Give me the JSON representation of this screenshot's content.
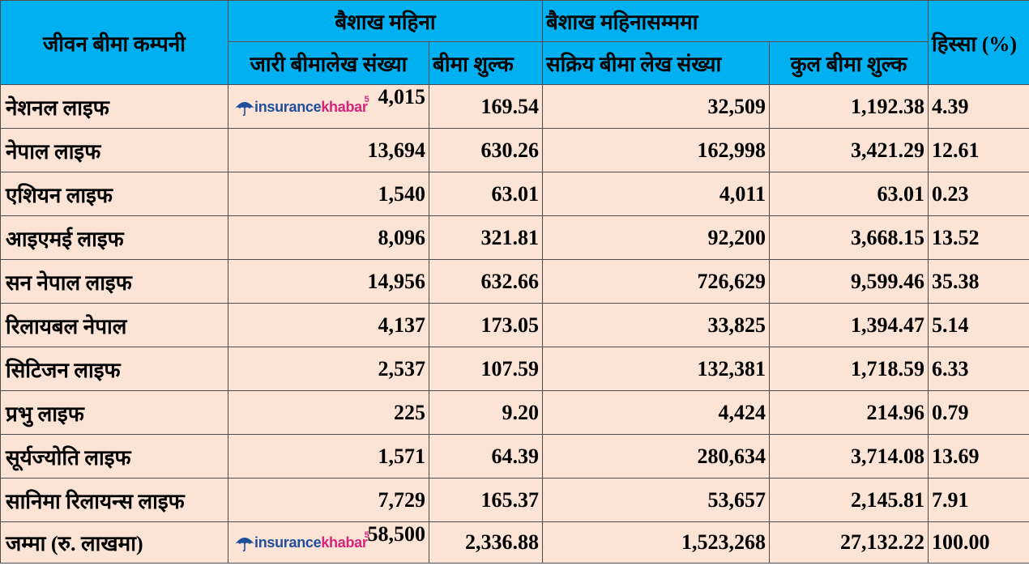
{
  "header": {
    "company_col": "जीवन बीमा कम्पनी",
    "group_month": "बैशाख महिना",
    "group_cumulative": "बैशाख महिनासम्ममा",
    "share_col": "हिस्सा (%)",
    "sub_policies_issued": "जारी बीमालेख संख्या",
    "sub_premium": "बीमा शुल्क",
    "sub_active_policies": "सक्रिय बीमा लेख संख्या",
    "sub_total_premium": "कुल बीमा शुल्क"
  },
  "watermark": {
    "word1": "insurance",
    "word2": "khabar",
    "sup": "5",
    "color_blue": "#1f4e9c",
    "color_pink": "#d6247a"
  },
  "colors": {
    "header_bg": "#00b0f0",
    "body_bg": "#fbe4d5",
    "border": "#4d4d4d"
  },
  "rows": [
    {
      "company": "नेशनल लाइफ",
      "issued": "4,015",
      "premium": "169.54",
      "active": "32,509",
      "total_premium": "1,192.38",
      "share": "4.39"
    },
    {
      "company": "नेपाल लाइफ",
      "issued": "13,694",
      "premium": "630.26",
      "active": "162,998",
      "total_premium": "3,421.29",
      "share": "12.61"
    },
    {
      "company": "एशियन लाइफ",
      "issued": "1,540",
      "premium": "63.01",
      "active": "4,011",
      "total_premium": "63.01",
      "share": "0.23"
    },
    {
      "company": "आइएमई लाइफ",
      "issued": "8,096",
      "premium": "321.81",
      "active": "92,200",
      "total_premium": "3,668.15",
      "share": "13.52"
    },
    {
      "company": "सन नेपाल लाइफ",
      "issued": "14,956",
      "premium": "632.66",
      "active": "726,629",
      "total_premium": "9,599.46",
      "share": "35.38"
    },
    {
      "company": "रिलायबल नेपाल",
      "issued": "4,137",
      "premium": "173.05",
      "active": "33,825",
      "total_premium": "1,394.47",
      "share": "5.14"
    },
    {
      "company": "सिटिजन लाइफ",
      "issued": "2,537",
      "premium": "107.59",
      "active": "132,381",
      "total_premium": "1,718.59",
      "share": "6.33"
    },
    {
      "company": "प्रभु लाइफ",
      "issued": "225",
      "premium": "9.20",
      "active": "4,424",
      "total_premium": "214.96",
      "share": "0.79"
    },
    {
      "company": "सूर्यज्योति लाइफ",
      "issued": "1,571",
      "premium": "64.39",
      "active": "280,634",
      "total_premium": "3,714.08",
      "share": "13.69"
    },
    {
      "company": "सानिमा रिलायन्स लाइफ",
      "issued": "7,729",
      "premium": "165.37",
      "active": "53,657",
      "total_premium": "2,145.81",
      "share": "7.91"
    }
  ],
  "total": {
    "label": "जम्मा (रु. लाखमा)",
    "issued": "58,500",
    "premium": "2,336.88",
    "active": "1,523,268",
    "total_premium": "27,132.22",
    "share": "100.00"
  }
}
